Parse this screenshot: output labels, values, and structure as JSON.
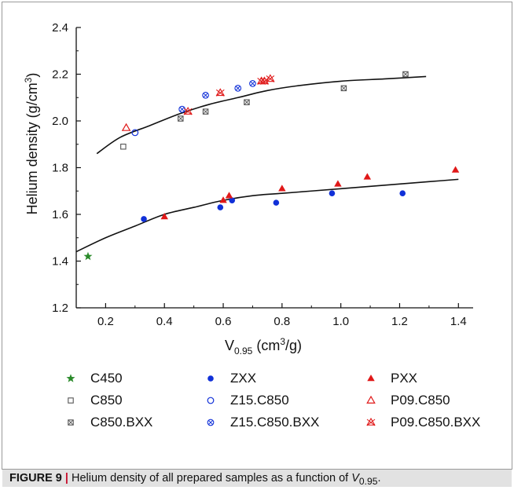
{
  "chart_data": {
    "type": "scatter",
    "xlabel": "V",
    "xlabel_sub": "0.95",
    "xlabel_unit_pre": " (cm",
    "xlabel_unit_sup": "3",
    "xlabel_unit_post": "/g)",
    "ylabel": "Helium density (g/cm",
    "ylabel_sup": "3",
    "ylabel_post": ")",
    "xlim": [
      0.1,
      1.45
    ],
    "ylim": [
      1.2,
      2.4
    ],
    "xticks": [
      0.2,
      0.4,
      0.6,
      0.8,
      1.0,
      1.2,
      1.4
    ],
    "xtick_labels": [
      "0.2",
      "0.4",
      "0.6",
      "0.8",
      "1.0",
      "1.2",
      "1.4"
    ],
    "yticks": [
      1.2,
      1.4,
      1.6,
      1.8,
      2.0,
      2.2,
      2.4
    ],
    "ytick_labels": [
      "1.2",
      "1.4",
      "1.6",
      "1.8",
      "2.0",
      "2.2",
      "2.4"
    ],
    "grid": false,
    "legend_position": "bottom",
    "series": [
      {
        "name": "C450",
        "marker": "star",
        "color": "#2a8a2a",
        "x": [
          0.14
        ],
        "y": [
          1.42
        ]
      },
      {
        "name": "ZXX",
        "marker": "circle-filled",
        "color": "#1030d8",
        "x": [
          0.33,
          0.59,
          0.63,
          0.78,
          0.97,
          1.21
        ],
        "y": [
          1.58,
          1.63,
          1.66,
          1.65,
          1.69,
          1.69
        ]
      },
      {
        "name": "PXX",
        "marker": "triangle-filled",
        "color": "#e01818",
        "x": [
          0.4,
          0.6,
          0.62,
          0.8,
          0.99,
          1.09,
          1.39
        ],
        "y": [
          1.59,
          1.66,
          1.68,
          1.71,
          1.73,
          1.76,
          1.79
        ]
      },
      {
        "name": "C850",
        "marker": "square-open",
        "color": "#555555",
        "x": [
          0.26
        ],
        "y": [
          1.89
        ]
      },
      {
        "name": "Z15.C850",
        "marker": "circle-open",
        "color": "#1030d8",
        "x": [
          0.3
        ],
        "y": [
          1.95
        ]
      },
      {
        "name": "P09.C850",
        "marker": "triangle-open",
        "color": "#e01818",
        "x": [
          0.27
        ],
        "y": [
          1.97
        ]
      },
      {
        "name": "C850.BXX",
        "marker": "square-x",
        "color": "#555555",
        "x": [
          0.455,
          0.54,
          0.68,
          1.01,
          1.22
        ],
        "y": [
          2.01,
          2.04,
          2.08,
          2.14,
          2.2
        ]
      },
      {
        "name": "Z15.C850.BXX",
        "marker": "circle-x",
        "color": "#1030d8",
        "x": [
          0.46,
          0.54,
          0.65,
          0.7
        ],
        "y": [
          2.05,
          2.11,
          2.14,
          2.16
        ]
      },
      {
        "name": "P09.C850.BXX",
        "marker": "triangle-x",
        "color": "#e01818",
        "x": [
          0.48,
          0.59,
          0.73,
          0.74,
          0.76
        ],
        "y": [
          2.04,
          2.12,
          2.17,
          2.17,
          2.18
        ]
      }
    ],
    "fit_curves": [
      {
        "x": [
          0.17,
          0.25,
          0.35,
          0.45,
          0.55,
          0.65,
          0.75,
          0.85,
          1.0,
          1.15,
          1.29
        ],
        "y": [
          1.86,
          1.93,
          1.98,
          2.03,
          2.07,
          2.1,
          2.13,
          2.15,
          2.17,
          2.18,
          2.19
        ]
      },
      {
        "x": [
          0.1,
          0.2,
          0.3,
          0.4,
          0.5,
          0.6,
          0.7,
          0.8,
          0.9,
          1.0,
          1.1,
          1.2,
          1.3,
          1.4
        ],
        "y": [
          1.44,
          1.5,
          1.55,
          1.6,
          1.63,
          1.66,
          1.68,
          1.69,
          1.7,
          1.71,
          1.72,
          1.73,
          1.74,
          1.75
        ]
      }
    ],
    "legend_layout": [
      [
        "C450",
        "ZXX",
        "PXX"
      ],
      [
        "C850",
        "Z15.C850",
        "P09.C850"
      ],
      [
        "C850.BXX",
        "Z15.C850.BXX",
        "P09.C850.BXX"
      ]
    ]
  },
  "caption": {
    "label": "FIGURE 9",
    "separator": "|",
    "text": " Helium density of all prepared samples as a function of ",
    "var": "V",
    "var_sub": "0.95",
    "end": "."
  }
}
